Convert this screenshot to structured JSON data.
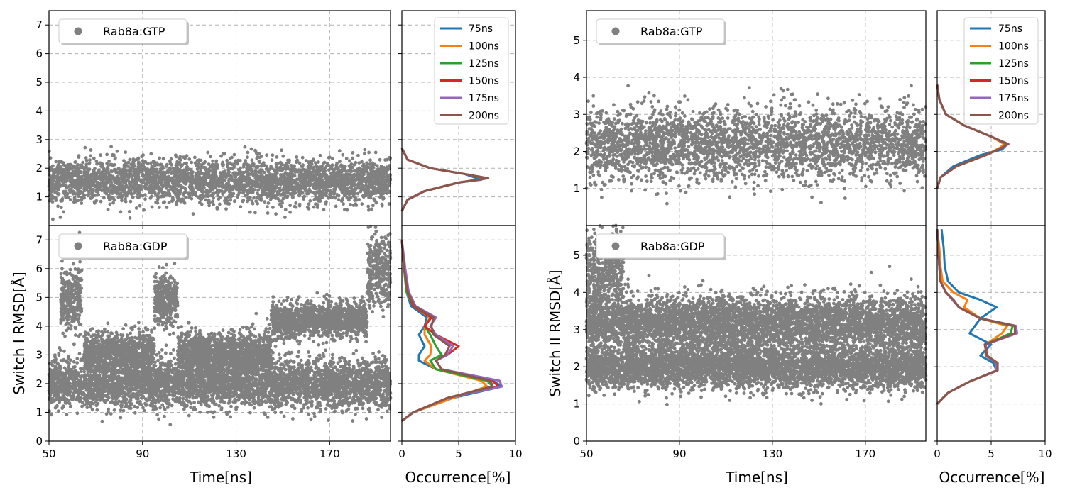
{
  "figure": {
    "xlabel_time": "Time[ns]",
    "xlabel_occ": "Occurrence[%]",
    "ylabel_left": "Switch I RMSD[Å]",
    "ylabel_right": "Switch II RMSD[Å]",
    "scatter_color": "#808080",
    "hist_colors": [
      "#1f77b4",
      "#ff7f0e",
      "#2ca02c",
      "#d62728",
      "#9467bd",
      "#8c564b"
    ],
    "hist_labels": [
      "75ns",
      "100ns",
      "125ns",
      "150ns",
      "175ns",
      "200ns"
    ]
  },
  "chart_data": [
    {
      "id": "s1-gtp",
      "type": "scatter",
      "series": [
        {
          "name": "Rab8a:GTP",
          "x_range": [
            50,
            196
          ],
          "y_mean": 1.55,
          "y_spread": [
            0.8,
            2.4
          ],
          "y_max": 2.8
        }
      ],
      "xlim": [
        50,
        196
      ],
      "ylim": [
        0,
        7.5
      ],
      "xticks": [
        50,
        90,
        130,
        170
      ],
      "yticks": [
        1,
        2,
        3,
        4,
        5,
        6,
        7
      ],
      "legend": "top-left",
      "grid": true
    },
    {
      "id": "s1-gtp-hist",
      "type": "line",
      "xlim": [
        0,
        10
      ],
      "ylim": [
        0,
        7.5
      ],
      "series": [
        {
          "name": "75ns",
          "y": [
            0.5,
            0.9,
            1.2,
            1.5,
            1.6,
            1.8,
            2.0,
            2.3,
            2.7
          ],
          "x": [
            0,
            0.5,
            2.0,
            5.0,
            7.0,
            5.5,
            2.5,
            0.5,
            0
          ]
        },
        {
          "name": "100ns",
          "y": [
            0.5,
            0.9,
            1.2,
            1.5,
            1.65,
            1.8,
            2.0,
            2.3,
            2.7
          ],
          "x": [
            0,
            0.5,
            2.0,
            5.0,
            7.5,
            5.5,
            2.5,
            0.5,
            0
          ]
        },
        {
          "name": "125ns",
          "y": [
            0.5,
            0.9,
            1.2,
            1.5,
            1.65,
            1.8,
            2.0,
            2.3,
            2.7
          ],
          "x": [
            0,
            0.5,
            2.0,
            5.0,
            7.5,
            5.5,
            2.5,
            0.5,
            0
          ]
        },
        {
          "name": "150ns",
          "y": [
            0.5,
            0.9,
            1.2,
            1.5,
            1.65,
            1.8,
            2.0,
            2.3,
            2.7
          ],
          "x": [
            0,
            0.5,
            2.0,
            5.0,
            7.6,
            5.5,
            2.5,
            0.5,
            0
          ]
        },
        {
          "name": "175ns",
          "y": [
            0.5,
            0.9,
            1.2,
            1.5,
            1.65,
            1.8,
            2.0,
            2.3,
            2.7
          ],
          "x": [
            0,
            0.5,
            2.0,
            5.0,
            7.5,
            5.5,
            2.5,
            0.5,
            0
          ]
        },
        {
          "name": "200ns",
          "y": [
            0.5,
            0.9,
            1.2,
            1.5,
            1.65,
            1.8,
            2.0,
            2.3,
            2.7
          ],
          "x": [
            0,
            0.5,
            2.0,
            5.0,
            7.6,
            5.5,
            2.5,
            0.5,
            0
          ]
        }
      ],
      "legend": "top-right",
      "grid": true
    },
    {
      "id": "s1-gdp",
      "type": "scatter",
      "series": [
        {
          "name": "Rab8a:GDP"
        }
      ],
      "clusters": [
        {
          "x": [
            50,
            196
          ],
          "y_mean": 2.0,
          "y_sd": 0.42
        },
        {
          "x": [
            55,
            64
          ],
          "y_mean": 4.9,
          "y_sd": 0.55
        },
        {
          "x": [
            65,
            95
          ],
          "y_mean": 3.1,
          "y_sd": 0.35
        },
        {
          "x": [
            95,
            105
          ],
          "y_mean": 4.9,
          "y_sd": 0.45
        },
        {
          "x": [
            105,
            145
          ],
          "y_mean": 3.1,
          "y_sd": 0.35
        },
        {
          "x": [
            145,
            186
          ],
          "y_mean": 4.2,
          "y_sd": 0.3
        },
        {
          "x": [
            186,
            196
          ],
          "y_mean": 5.9,
          "y_sd": 0.65
        }
      ],
      "xlim": [
        50,
        196
      ],
      "ylim": [
        0,
        7.5
      ],
      "xticks": [
        50,
        90,
        130,
        170
      ],
      "yticks": [
        0,
        1,
        2,
        3,
        4,
        5,
        6,
        7
      ],
      "legend": "top-left",
      "grid": true
    },
    {
      "id": "s1-gdp-hist",
      "type": "line",
      "xlim": [
        0,
        10
      ],
      "ylim": [
        0,
        7.5
      ],
      "series": [
        {
          "name": "75ns",
          "y": [
            0.7,
            1.0,
            1.5,
            1.9,
            2.1,
            2.5,
            2.8,
            3.0,
            3.3,
            3.7,
            4.0,
            4.3,
            4.7,
            5.2,
            6.0,
            7.0
          ],
          "x": [
            0,
            1.0,
            4.5,
            8.8,
            8.0,
            3.0,
            1.5,
            1.5,
            2.0,
            1.5,
            2.0,
            2.2,
            0.8,
            0.4,
            0.2,
            0
          ]
        },
        {
          "name": "100ns",
          "y": [
            0.7,
            1.0,
            1.5,
            1.9,
            2.1,
            2.5,
            2.8,
            3.0,
            3.3,
            3.7,
            4.0,
            4.3,
            4.7,
            5.2,
            6.0,
            7.0
          ],
          "x": [
            0,
            1.0,
            4.5,
            7.5,
            7.0,
            3.0,
            2.0,
            2.5,
            2.6,
            2.0,
            2.0,
            2.5,
            1.0,
            0.4,
            0.2,
            0
          ]
        },
        {
          "name": "125ns",
          "y": [
            0.7,
            1.0,
            1.5,
            1.9,
            2.1,
            2.5,
            2.8,
            3.0,
            3.3,
            3.7,
            4.0,
            4.3,
            4.7,
            5.2,
            6.0,
            7.0
          ],
          "x": [
            0,
            1.0,
            4.0,
            8.0,
            7.5,
            3.0,
            2.5,
            3.5,
            3.0,
            2.5,
            2.0,
            2.6,
            1.0,
            0.4,
            0.2,
            0
          ]
        },
        {
          "name": "150ns",
          "y": [
            0.7,
            1.0,
            1.5,
            1.9,
            2.1,
            2.5,
            2.8,
            3.0,
            3.3,
            3.7,
            4.0,
            4.3,
            4.7,
            5.2,
            6.0,
            7.0
          ],
          "x": [
            0,
            1.0,
            4.0,
            8.5,
            8.0,
            3.5,
            3.0,
            4.0,
            5.0,
            3.0,
            2.0,
            2.6,
            1.0,
            0.5,
            0.2,
            0
          ]
        },
        {
          "name": "175ns",
          "y": [
            0.7,
            1.0,
            1.5,
            1.9,
            2.1,
            2.5,
            2.8,
            3.0,
            3.3,
            3.7,
            4.0,
            4.3,
            4.7,
            5.2,
            6.0,
            7.0
          ],
          "x": [
            0,
            1.0,
            4.0,
            8.8,
            8.6,
            3.5,
            3.0,
            4.0,
            4.5,
            3.0,
            2.5,
            3.0,
            1.2,
            0.6,
            0.3,
            0
          ]
        },
        {
          "name": "200ns",
          "y": [
            0.7,
            1.0,
            1.5,
            1.9,
            2.1,
            2.5,
            2.8,
            3.0,
            3.3,
            3.7,
            4.0,
            4.3,
            4.7,
            5.2,
            6.0,
            7.0
          ],
          "x": [
            0,
            1.0,
            4.0,
            8.0,
            7.8,
            3.5,
            3.0,
            3.8,
            4.2,
            2.8,
            2.6,
            2.8,
            1.1,
            0.5,
            0.2,
            0
          ]
        }
      ],
      "grid": true
    },
    {
      "id": "s2-gtp",
      "type": "scatter",
      "series": [
        {
          "name": "Rab8a:GTP",
          "x_range": [
            50,
            196
          ],
          "y_mean": 2.2,
          "y_spread": [
            1.2,
            3.2
          ],
          "y_max": 3.8
        }
      ],
      "xlim": [
        50,
        196
      ],
      "ylim": [
        0,
        5.8
      ],
      "xticks": [
        50,
        90,
        130,
        170
      ],
      "yticks": [
        1,
        2,
        3,
        4,
        5
      ],
      "legend": "top-left",
      "grid": true
    },
    {
      "id": "s2-gtp-hist",
      "type": "line",
      "xlim": [
        0,
        10
      ],
      "ylim": [
        0,
        5.8
      ],
      "series": [
        {
          "name": "75ns",
          "y": [
            1.0,
            1.3,
            1.6,
            1.9,
            2.05,
            2.2,
            2.4,
            2.7,
            3.0,
            3.4,
            3.8
          ],
          "x": [
            0,
            0.3,
            1.5,
            4.0,
            6.0,
            6.5,
            5.0,
            2.5,
            0.8,
            0.2,
            0
          ]
        },
        {
          "name": "100ns",
          "y": [
            1.0,
            1.3,
            1.6,
            1.9,
            2.1,
            2.2,
            2.4,
            2.7,
            3.0,
            3.4,
            3.8
          ],
          "x": [
            0,
            0.3,
            1.8,
            4.5,
            5.8,
            6.2,
            5.0,
            2.5,
            0.8,
            0.2,
            0
          ]
        },
        {
          "name": "125ns",
          "y": [
            1.0,
            1.3,
            1.6,
            1.9,
            2.1,
            2.2,
            2.4,
            2.7,
            3.0,
            3.4,
            3.8
          ],
          "x": [
            0,
            0.3,
            1.8,
            4.5,
            6.0,
            6.4,
            5.0,
            2.5,
            0.8,
            0.2,
            0
          ]
        },
        {
          "name": "150ns",
          "y": [
            1.0,
            1.3,
            1.6,
            1.9,
            2.1,
            2.2,
            2.4,
            2.7,
            3.0,
            3.4,
            3.8
          ],
          "x": [
            0,
            0.3,
            1.8,
            4.5,
            6.0,
            6.5,
            5.0,
            2.5,
            0.8,
            0.2,
            0
          ]
        },
        {
          "name": "175ns",
          "y": [
            1.0,
            1.3,
            1.6,
            1.9,
            2.1,
            2.2,
            2.4,
            2.7,
            3.0,
            3.4,
            3.8
          ],
          "x": [
            0,
            0.3,
            1.8,
            4.5,
            6.0,
            6.5,
            5.0,
            2.5,
            0.8,
            0.2,
            0
          ]
        },
        {
          "name": "200ns",
          "y": [
            1.0,
            1.3,
            1.6,
            1.9,
            2.1,
            2.2,
            2.4,
            2.7,
            3.0,
            3.4,
            3.8
          ],
          "x": [
            0,
            0.3,
            1.8,
            4.5,
            6.0,
            6.6,
            5.0,
            2.5,
            0.8,
            0.2,
            0
          ]
        }
      ],
      "legend": "top-right",
      "grid": true
    },
    {
      "id": "s2-gdp",
      "type": "scatter",
      "series": [
        {
          "name": "Rab8a:GDP"
        }
      ],
      "clusters": [
        {
          "x": [
            50,
            196
          ],
          "y_mean": 2.0,
          "y_sd": 0.3
        },
        {
          "x": [
            50,
            196
          ],
          "y_mean": 3.2,
          "y_sd": 0.35
        },
        {
          "x": [
            50,
            66
          ],
          "y_mean": 4.6,
          "y_sd": 0.6
        }
      ],
      "xlim": [
        50,
        196
      ],
      "ylim": [
        0,
        5.8
      ],
      "xticks": [
        50,
        90,
        130,
        170
      ],
      "yticks": [
        0,
        1,
        2,
        3,
        4,
        5
      ],
      "legend": "top-left",
      "grid": true
    },
    {
      "id": "s2-gdp-hist",
      "type": "line",
      "xlim": [
        0,
        10
      ],
      "ylim": [
        0,
        5.8
      ],
      "series": [
        {
          "name": "75ns",
          "y": [
            1.0,
            1.3,
            1.6,
            1.9,
            2.1,
            2.3,
            2.6,
            2.9,
            3.1,
            3.3,
            3.6,
            3.8,
            4.0,
            4.3,
            4.7,
            5.2,
            5.7
          ],
          "x": [
            0,
            1.0,
            3.0,
            5.5,
            5.2,
            4.0,
            5.0,
            3.0,
            3.5,
            4.0,
            5.5,
            4.0,
            2.0,
            1.0,
            0.7,
            0.6,
            0.4
          ]
        },
        {
          "name": "100ns",
          "y": [
            1.0,
            1.3,
            1.6,
            1.9,
            2.1,
            2.3,
            2.6,
            2.9,
            3.1,
            3.3,
            3.6,
            3.8,
            4.0,
            4.3,
            4.7,
            5.2,
            5.7
          ],
          "x": [
            0,
            1.0,
            3.0,
            5.5,
            5.5,
            4.5,
            4.5,
            6.0,
            6.5,
            4.0,
            2.5,
            2.8,
            1.5,
            0.5,
            0.3,
            0.2,
            0
          ]
        },
        {
          "name": "125ns",
          "y": [
            1.0,
            1.3,
            1.6,
            1.9,
            2.1,
            2.3,
            2.6,
            2.9,
            3.1,
            3.3,
            3.6,
            3.8,
            4.0,
            4.3,
            4.7,
            5.2,
            5.7
          ],
          "x": [
            0,
            1.0,
            3.0,
            5.5,
            5.5,
            4.5,
            4.5,
            6.8,
            7.0,
            4.0,
            2.0,
            1.5,
            0.8,
            0.3,
            0.2,
            0.1,
            0
          ]
        },
        {
          "name": "150ns",
          "y": [
            1.0,
            1.3,
            1.6,
            1.9,
            2.1,
            2.3,
            2.6,
            2.9,
            3.1,
            3.3,
            3.6,
            3.8,
            4.0,
            4.3,
            4.7,
            5.2,
            5.7
          ],
          "x": [
            0,
            1.0,
            3.0,
            5.5,
            5.6,
            4.6,
            4.5,
            7.3,
            7.2,
            4.0,
            2.0,
            1.5,
            0.8,
            0.3,
            0.2,
            0.1,
            0
          ]
        },
        {
          "name": "175ns",
          "y": [
            1.0,
            1.3,
            1.6,
            1.9,
            2.1,
            2.3,
            2.6,
            2.9,
            3.1,
            3.3,
            3.6,
            3.8,
            4.0,
            4.3,
            4.7,
            5.2,
            5.7
          ],
          "x": [
            0,
            1.0,
            3.0,
            5.5,
            5.5,
            4.5,
            4.5,
            7.4,
            7.3,
            4.0,
            2.0,
            1.4,
            0.8,
            0.3,
            0.2,
            0.1,
            0
          ]
        },
        {
          "name": "200ns",
          "y": [
            1.0,
            1.3,
            1.6,
            1.9,
            2.1,
            2.3,
            2.6,
            2.9,
            3.1,
            3.3,
            3.6,
            3.8,
            4.0,
            4.3,
            4.7,
            5.2,
            5.7
          ],
          "x": [
            0,
            1.0,
            3.0,
            5.6,
            5.6,
            4.6,
            4.4,
            7.2,
            7.2,
            4.0,
            2.0,
            1.5,
            0.8,
            0.3,
            0.2,
            0.1,
            0
          ]
        }
      ],
      "grid": true
    }
  ]
}
